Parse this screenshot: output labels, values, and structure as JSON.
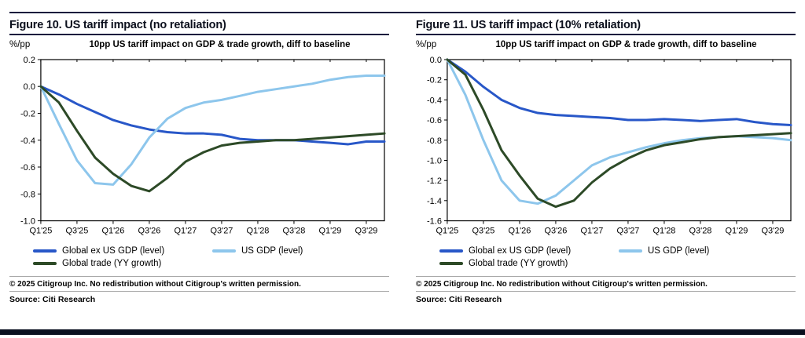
{
  "page": {
    "copyright": "© 2025 Citigroup Inc. No redistribution without Citigroup's written permission.",
    "source_label": "Source: Citi Research"
  },
  "colors": {
    "accent_navy": "#0e1b3d",
    "bottom_bar": "#0a101f",
    "global_ex_us_gdp": "#2857c8",
    "us_gdp": "#8dc6ec",
    "global_trade": "#2d4a27"
  },
  "chart_data": [
    {
      "type": "line",
      "figure_title": "Figure 10. US tariff impact (no retaliation)",
      "subtitle": "10pp US tariff impact on GDP & trade growth, diff to baseline",
      "y_axis_units": "%/pp",
      "grid": false,
      "legend_position": "bottom",
      "x_quarters": [
        "Q1'25",
        "Q2'25",
        "Q3'25",
        "Q4'25",
        "Q1'26",
        "Q2'26",
        "Q3'26",
        "Q4'26",
        "Q1'27",
        "Q2'27",
        "Q3'27",
        "Q4'27",
        "Q1'28",
        "Q2'28",
        "Q3'28",
        "Q4'28",
        "Q1'29",
        "Q2'29",
        "Q3'29",
        "Q4'29"
      ],
      "x_tick_every": 2,
      "ylim": [
        -1.0,
        0.2
      ],
      "y_tick_step": 0.2,
      "series": [
        {
          "name": "Global ex US GDP (level)",
          "color_key": "global_ex_us_gdp",
          "values": [
            0.0,
            -0.06,
            -0.13,
            -0.19,
            -0.25,
            -0.29,
            -0.32,
            -0.34,
            -0.35,
            -0.35,
            -0.36,
            -0.39,
            -0.4,
            -0.4,
            -0.4,
            -0.41,
            -0.42,
            -0.43,
            -0.41,
            -0.41
          ]
        },
        {
          "name": "US GDP (level)",
          "color_key": "us_gdp",
          "values": [
            0.0,
            -0.28,
            -0.55,
            -0.72,
            -0.73,
            -0.58,
            -0.38,
            -0.24,
            -0.16,
            -0.12,
            -0.1,
            -0.07,
            -0.04,
            -0.02,
            0.0,
            0.02,
            0.05,
            0.07,
            0.08,
            0.08
          ]
        },
        {
          "name": "Global trade (YY growth)",
          "color_key": "global_trade",
          "values": [
            0.0,
            -0.12,
            -0.33,
            -0.53,
            -0.65,
            -0.74,
            -0.78,
            -0.68,
            -0.56,
            -0.49,
            -0.44,
            -0.42,
            -0.41,
            -0.4,
            -0.4,
            -0.39,
            -0.38,
            -0.37,
            -0.36,
            -0.35
          ]
        }
      ]
    },
    {
      "type": "line",
      "figure_title": "Figure 11. US tariff impact (10% retaliation)",
      "subtitle": "10pp US tariff impact on GDP & trade growth, diff to baseline",
      "y_axis_units": "%/pp",
      "grid": false,
      "legend_position": "bottom",
      "x_quarters": [
        "Q1'25",
        "Q2'25",
        "Q3'25",
        "Q4'25",
        "Q1'26",
        "Q2'26",
        "Q3'26",
        "Q4'26",
        "Q1'27",
        "Q2'27",
        "Q3'27",
        "Q4'27",
        "Q1'28",
        "Q2'28",
        "Q3'28",
        "Q4'28",
        "Q1'29",
        "Q2'29",
        "Q3'29",
        "Q4'29"
      ],
      "x_tick_every": 2,
      "ylim": [
        -1.6,
        0.0
      ],
      "y_tick_step": 0.2,
      "series": [
        {
          "name": "Global ex US GDP (level)",
          "color_key": "global_ex_us_gdp",
          "values": [
            0.0,
            -0.12,
            -0.27,
            -0.4,
            -0.48,
            -0.53,
            -0.55,
            -0.56,
            -0.57,
            -0.58,
            -0.6,
            -0.6,
            -0.59,
            -0.6,
            -0.61,
            -0.6,
            -0.59,
            -0.62,
            -0.64,
            -0.65
          ]
        },
        {
          "name": "US GDP (level)",
          "color_key": "us_gdp",
          "values": [
            0.0,
            -0.35,
            -0.8,
            -1.2,
            -1.4,
            -1.43,
            -1.35,
            -1.2,
            -1.05,
            -0.97,
            -0.92,
            -0.87,
            -0.83,
            -0.8,
            -0.78,
            -0.77,
            -0.76,
            -0.77,
            -0.78,
            -0.8
          ]
        },
        {
          "name": "Global trade (YY growth)",
          "color_key": "global_trade",
          "values": [
            0.0,
            -0.15,
            -0.5,
            -0.9,
            -1.15,
            -1.38,
            -1.46,
            -1.4,
            -1.22,
            -1.08,
            -0.98,
            -0.9,
            -0.85,
            -0.82,
            -0.79,
            -0.77,
            -0.76,
            -0.75,
            -0.74,
            -0.73
          ]
        }
      ]
    }
  ]
}
